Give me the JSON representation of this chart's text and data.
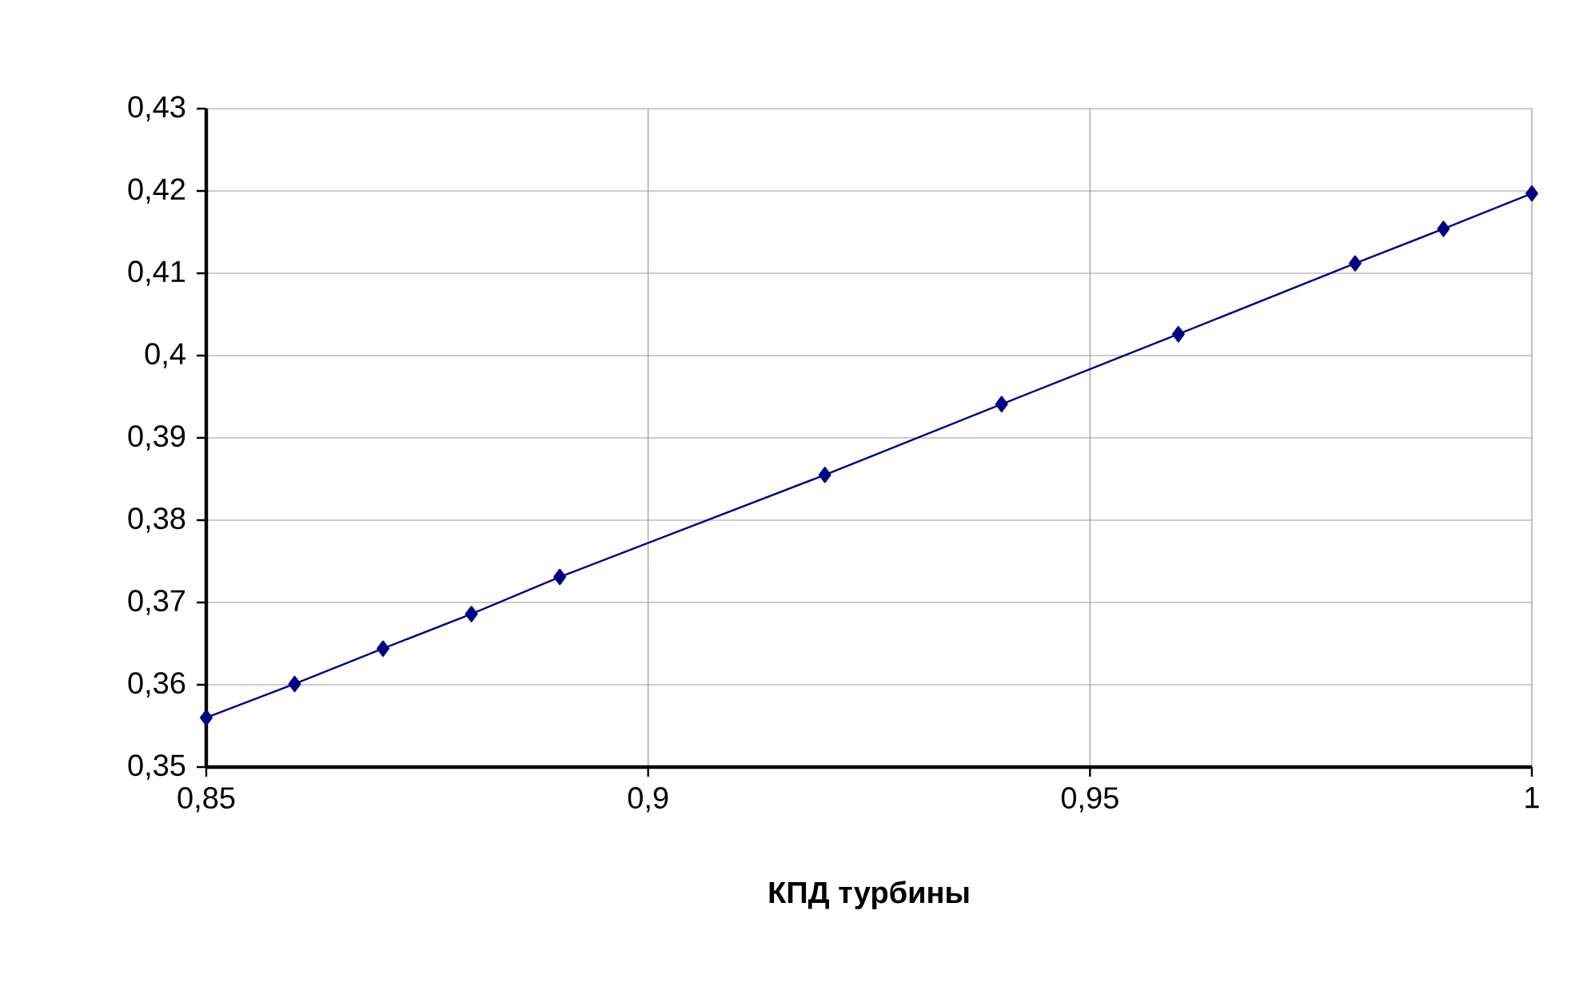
{
  "chart_data": {
    "type": "line",
    "xlabel": "КПД турбины",
    "x": [
      0.85,
      0.86,
      0.87,
      0.88,
      0.89,
      0.92,
      0.94,
      0.96,
      0.98,
      0.99,
      1.0
    ],
    "series": [
      {
        "color": "#000080",
        "values": [
          0.356,
          0.3601,
          0.3644,
          0.3686,
          0.3731,
          0.3855,
          0.3941,
          0.4026,
          0.4112,
          0.4154,
          0.4197
        ]
      }
    ],
    "xlim": [
      0.85,
      1.0
    ],
    "ylim": [
      0.35,
      0.43
    ],
    "xticks": [
      {
        "value": 0.85,
        "label": "0,85"
      },
      {
        "value": 0.9,
        "label": "0,9"
      },
      {
        "value": 0.95,
        "label": "0,95"
      },
      {
        "value": 1,
        "label": "1"
      }
    ],
    "yticks": [
      {
        "value": 0.35,
        "label": "0,35"
      },
      {
        "value": 0.36,
        "label": "0,36"
      },
      {
        "value": 0.37,
        "label": "0,37"
      },
      {
        "value": 0.38,
        "label": "0,38"
      },
      {
        "value": 0.39,
        "label": "0,39"
      },
      {
        "value": 0.4,
        "label": "0,4"
      },
      {
        "value": 0.41,
        "label": "0,41"
      },
      {
        "value": 0.42,
        "label": "0,42"
      },
      {
        "value": 0.43,
        "label": "0,43"
      }
    ],
    "grid": true,
    "marker": "diamond",
    "line_style": "solid"
  }
}
